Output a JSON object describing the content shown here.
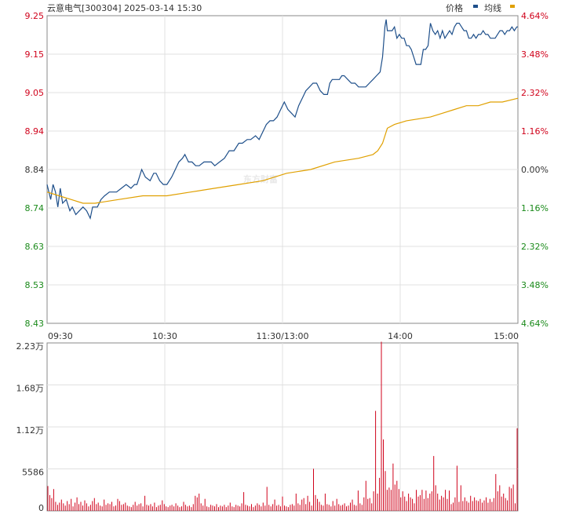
{
  "header": {
    "title": "云意电气[300304] 2025-03-14 15:30",
    "legend_price": "价格",
    "legend_avg": "均线"
  },
  "watermark": "东方财富",
  "colors": {
    "price_line": "#1e4f8a",
    "avg_line": "#e0a000",
    "up": "#d0021b",
    "down": "#1a8a1a",
    "grid": "#e0e0e0",
    "axis": "#888888",
    "volume_bar": "#d0021b"
  },
  "chart_data": [
    {
      "type": "line",
      "x_ticks": [
        "09:30",
        "10:30",
        "11:30/13:00",
        "14:00",
        "15:00"
      ],
      "y_left_ticks": [
        "9.25",
        "9.15",
        "9.05",
        "8.94",
        "8.84",
        "8.74",
        "8.63",
        "8.53",
        "8.43"
      ],
      "y_right_ticks": [
        "4.64%",
        "3.48%",
        "2.32%",
        "1.16%",
        "0.00%",
        "1.16%",
        "2.32%",
        "3.48%",
        "4.64%"
      ],
      "ylim": [
        8.43,
        9.25
      ],
      "prev_close": 8.84,
      "x_count": 241,
      "series": [
        {
          "name": "价格",
          "points": [
            [
              0,
              8.8
            ],
            [
              3,
              8.76
            ],
            [
              5,
              8.8
            ],
            [
              7,
              8.78
            ],
            [
              9,
              8.74
            ],
            [
              11,
              8.79
            ],
            [
              13,
              8.75
            ],
            [
              16,
              8.76
            ],
            [
              19,
              8.73
            ],
            [
              21,
              8.74
            ],
            [
              24,
              8.72
            ],
            [
              27,
              8.73
            ],
            [
              30,
              8.74
            ],
            [
              33,
              8.73
            ],
            [
              36,
              8.71
            ],
            [
              38,
              8.74
            ],
            [
              40,
              8.74
            ],
            [
              42,
              8.74
            ],
            [
              45,
              8.76
            ],
            [
              48,
              8.77
            ],
            [
              52,
              8.78
            ],
            [
              55,
              8.78
            ],
            [
              58,
              8.78
            ],
            [
              62,
              8.79
            ],
            [
              66,
              8.8
            ],
            [
              70,
              8.79
            ],
            [
              73,
              8.8
            ],
            [
              75,
              8.8
            ],
            [
              77,
              8.82
            ],
            [
              79,
              8.84
            ],
            [
              82,
              8.82
            ],
            [
              86,
              8.81
            ],
            [
              89,
              8.83
            ],
            [
              91,
              8.83
            ],
            [
              94,
              8.81
            ],
            [
              97,
              8.8
            ],
            [
              100,
              8.8
            ],
            [
              104,
              8.82
            ],
            [
              107,
              8.84
            ],
            [
              110,
              8.86
            ],
            [
              113,
              8.87
            ],
            [
              115,
              8.88
            ],
            [
              118,
              8.86
            ],
            [
              121,
              8.86
            ],
            [
              124,
              8.85
            ],
            [
              127,
              8.85
            ],
            [
              131,
              8.86
            ],
            [
              134,
              8.86
            ],
            [
              137,
              8.86
            ],
            [
              140,
              8.85
            ],
            [
              144,
              8.86
            ],
            [
              148,
              8.87
            ],
            [
              152,
              8.89
            ],
            [
              156,
              8.89
            ],
            [
              160,
              8.91
            ],
            [
              163,
              8.91
            ],
            [
              167,
              8.92
            ],
            [
              170,
              8.92
            ],
            [
              174,
              8.93
            ],
            [
              177,
              8.92
            ],
            [
              180,
              8.94
            ],
            [
              183,
              8.96
            ],
            [
              186,
              8.97
            ],
            [
              189,
              8.97
            ],
            [
              192,
              8.98
            ],
            [
              195,
              9.0
            ],
            [
              198,
              9.02
            ],
            [
              201,
              9.0
            ],
            [
              204,
              8.99
            ],
            [
              207,
              8.98
            ],
            [
              210,
              9.01
            ],
            [
              213,
              9.03
            ],
            [
              216,
              9.05
            ],
            [
              219,
              9.06
            ],
            [
              222,
              9.07
            ],
            [
              225,
              9.07
            ],
            [
              228,
              9.05
            ],
            [
              231,
              9.04
            ],
            [
              234,
              9.04
            ],
            [
              236,
              9.07
            ],
            [
              238,
              9.08
            ],
            [
              240,
              9.08
            ],
            [
              242,
              9.08
            ],
            [
              244,
              9.08
            ],
            [
              246,
              9.09
            ],
            [
              248,
              9.09
            ],
            [
              251,
              9.08
            ],
            [
              254,
              9.07
            ],
            [
              257,
              9.07
            ],
            [
              260,
              9.06
            ],
            [
              263,
              9.06
            ],
            [
              266,
              9.06
            ],
            [
              269,
              9.07
            ],
            [
              272,
              9.08
            ],
            [
              275,
              9.09
            ],
            [
              278,
              9.1
            ],
            [
              280,
              9.14
            ],
            [
              281,
              9.18
            ],
            [
              282,
              9.22
            ],
            [
              283,
              9.24
            ],
            [
              284,
              9.21
            ],
            [
              286,
              9.21
            ],
            [
              288,
              9.21
            ],
            [
              290,
              9.22
            ],
            [
              292,
              9.19
            ],
            [
              294,
              9.2
            ],
            [
              296,
              9.19
            ],
            [
              298,
              9.19
            ],
            [
              300,
              9.17
            ],
            [
              302,
              9.17
            ],
            [
              304,
              9.16
            ],
            [
              306,
              9.14
            ],
            [
              308,
              9.12
            ],
            [
              310,
              9.12
            ],
            [
              312,
              9.12
            ],
            [
              314,
              9.16
            ],
            [
              316,
              9.16
            ],
            [
              318,
              9.17
            ],
            [
              320,
              9.23
            ],
            [
              322,
              9.21
            ],
            [
              324,
              9.2
            ],
            [
              326,
              9.21
            ],
            [
              328,
              9.19
            ],
            [
              330,
              9.21
            ],
            [
              332,
              9.19
            ],
            [
              334,
              9.2
            ],
            [
              336,
              9.21
            ],
            [
              338,
              9.2
            ],
            [
              340,
              9.22
            ],
            [
              342,
              9.23
            ],
            [
              344,
              9.23
            ],
            [
              346,
              9.22
            ],
            [
              348,
              9.21
            ],
            [
              350,
              9.21
            ],
            [
              352,
              9.19
            ],
            [
              354,
              9.19
            ],
            [
              356,
              9.2
            ],
            [
              358,
              9.19
            ],
            [
              360,
              9.2
            ],
            [
              362,
              9.2
            ],
            [
              364,
              9.21
            ],
            [
              366,
              9.2
            ],
            [
              368,
              9.2
            ],
            [
              370,
              9.19
            ],
            [
              372,
              9.19
            ],
            [
              374,
              9.19
            ],
            [
              376,
              9.2
            ],
            [
              378,
              9.21
            ],
            [
              380,
              9.21
            ],
            [
              382,
              9.2
            ],
            [
              384,
              9.21
            ],
            [
              386,
              9.21
            ],
            [
              388,
              9.22
            ],
            [
              390,
              9.21
            ],
            [
              392,
              9.22
            ],
            [
              393,
              9.22
            ]
          ],
          "x_scale": 393
        },
        {
          "name": "均线",
          "points": [
            [
              0,
              8.78
            ],
            [
              10,
              8.77
            ],
            [
              20,
              8.76
            ],
            [
              30,
              8.75
            ],
            [
              40,
              8.75
            ],
            [
              60,
              8.76
            ],
            [
              80,
              8.77
            ],
            [
              100,
              8.77
            ],
            [
              120,
              8.78
            ],
            [
              140,
              8.79
            ],
            [
              160,
              8.8
            ],
            [
              180,
              8.81
            ],
            [
              200,
              8.83
            ],
            [
              220,
              8.84
            ],
            [
              240,
              8.86
            ],
            [
              260,
              8.87
            ],
            [
              272,
              8.88
            ],
            [
              276,
              8.89
            ],
            [
              280,
              8.91
            ],
            [
              284,
              8.95
            ],
            [
              290,
              8.96
            ],
            [
              300,
              8.97
            ],
            [
              320,
              8.98
            ],
            [
              330,
              8.99
            ],
            [
              340,
              9.0
            ],
            [
              350,
              9.01
            ],
            [
              360,
              9.01
            ],
            [
              370,
              9.02
            ],
            [
              380,
              9.02
            ],
            [
              393,
              9.03
            ]
          ],
          "x_scale": 393
        }
      ]
    },
    {
      "type": "bar",
      "title": "",
      "y_ticks": [
        "2.23万",
        "1.68万",
        "1.12万",
        "5586",
        "0"
      ],
      "ylim": [
        0,
        22345
      ],
      "x_count": 241,
      "values": [
        3300,
        2100,
        1700,
        2900,
        1200,
        800,
        1100,
        1500,
        1000,
        700,
        1300,
        900,
        1600,
        600,
        1100,
        1800,
        900,
        1200,
        700,
        1400,
        1000,
        600,
        800,
        1300,
        1700,
        900,
        1100,
        700,
        600,
        1500,
        800,
        1000,
        900,
        1200,
        600,
        700,
        1600,
        1300,
        800,
        900,
        1100,
        700,
        600,
        500,
        800,
        1200,
        700,
        900,
        1000,
        600,
        2000,
        800,
        700,
        900,
        600,
        1100,
        500,
        700,
        800,
        1400,
        900,
        600,
        500,
        700,
        800,
        600,
        1000,
        700,
        500,
        600,
        1200,
        800,
        600,
        700,
        500,
        900,
        2000,
        1800,
        2300,
        1000,
        700,
        1600,
        600,
        500,
        800,
        700,
        600,
        900,
        500,
        700,
        600,
        800,
        500,
        700,
        1100,
        600,
        500,
        800,
        700,
        600,
        1000,
        2500,
        800,
        700,
        600,
        900,
        500,
        700,
        1000,
        800,
        600,
        1100,
        700,
        3200,
        800,
        600,
        900,
        1500,
        700,
        800,
        600,
        1900,
        700,
        600,
        500,
        800,
        900,
        700,
        2300,
        1000,
        800,
        1500,
        1700,
        900,
        2000,
        1200,
        700,
        5600,
        2100,
        1600,
        1200,
        800,
        700,
        2300,
        900,
        800,
        600,
        1300,
        700,
        1600,
        900,
        700,
        800,
        1000,
        600,
        700,
        1100,
        1500,
        800,
        700,
        2700,
        1000,
        800,
        1800,
        4000,
        1600,
        1700,
        1000,
        2600,
        13300,
        2300,
        4400,
        22500,
        9500,
        5300,
        2800,
        3100,
        2800,
        6300,
        3500,
        4000,
        2900,
        1800,
        2600,
        1900,
        1300,
        2300,
        1800,
        1600,
        1000,
        2800,
        1900,
        2100,
        2800,
        1600,
        2700,
        1700,
        2300,
        2600,
        7300,
        3400,
        2300,
        1500,
        2000,
        1800,
        2800,
        1600,
        2700,
        900,
        1100,
        1800,
        6000,
        1200,
        3400,
        1300,
        1800,
        1300,
        1100,
        2000,
        1300,
        1800,
        1400,
        1300,
        1600,
        1100,
        1400,
        1800,
        1100,
        1600,
        1200,
        1700,
        4900,
        2600,
        3400,
        1900,
        2300,
        1700,
        1400,
        3200,
        3000,
        3500,
        1000,
        11000
      ]
    }
  ]
}
